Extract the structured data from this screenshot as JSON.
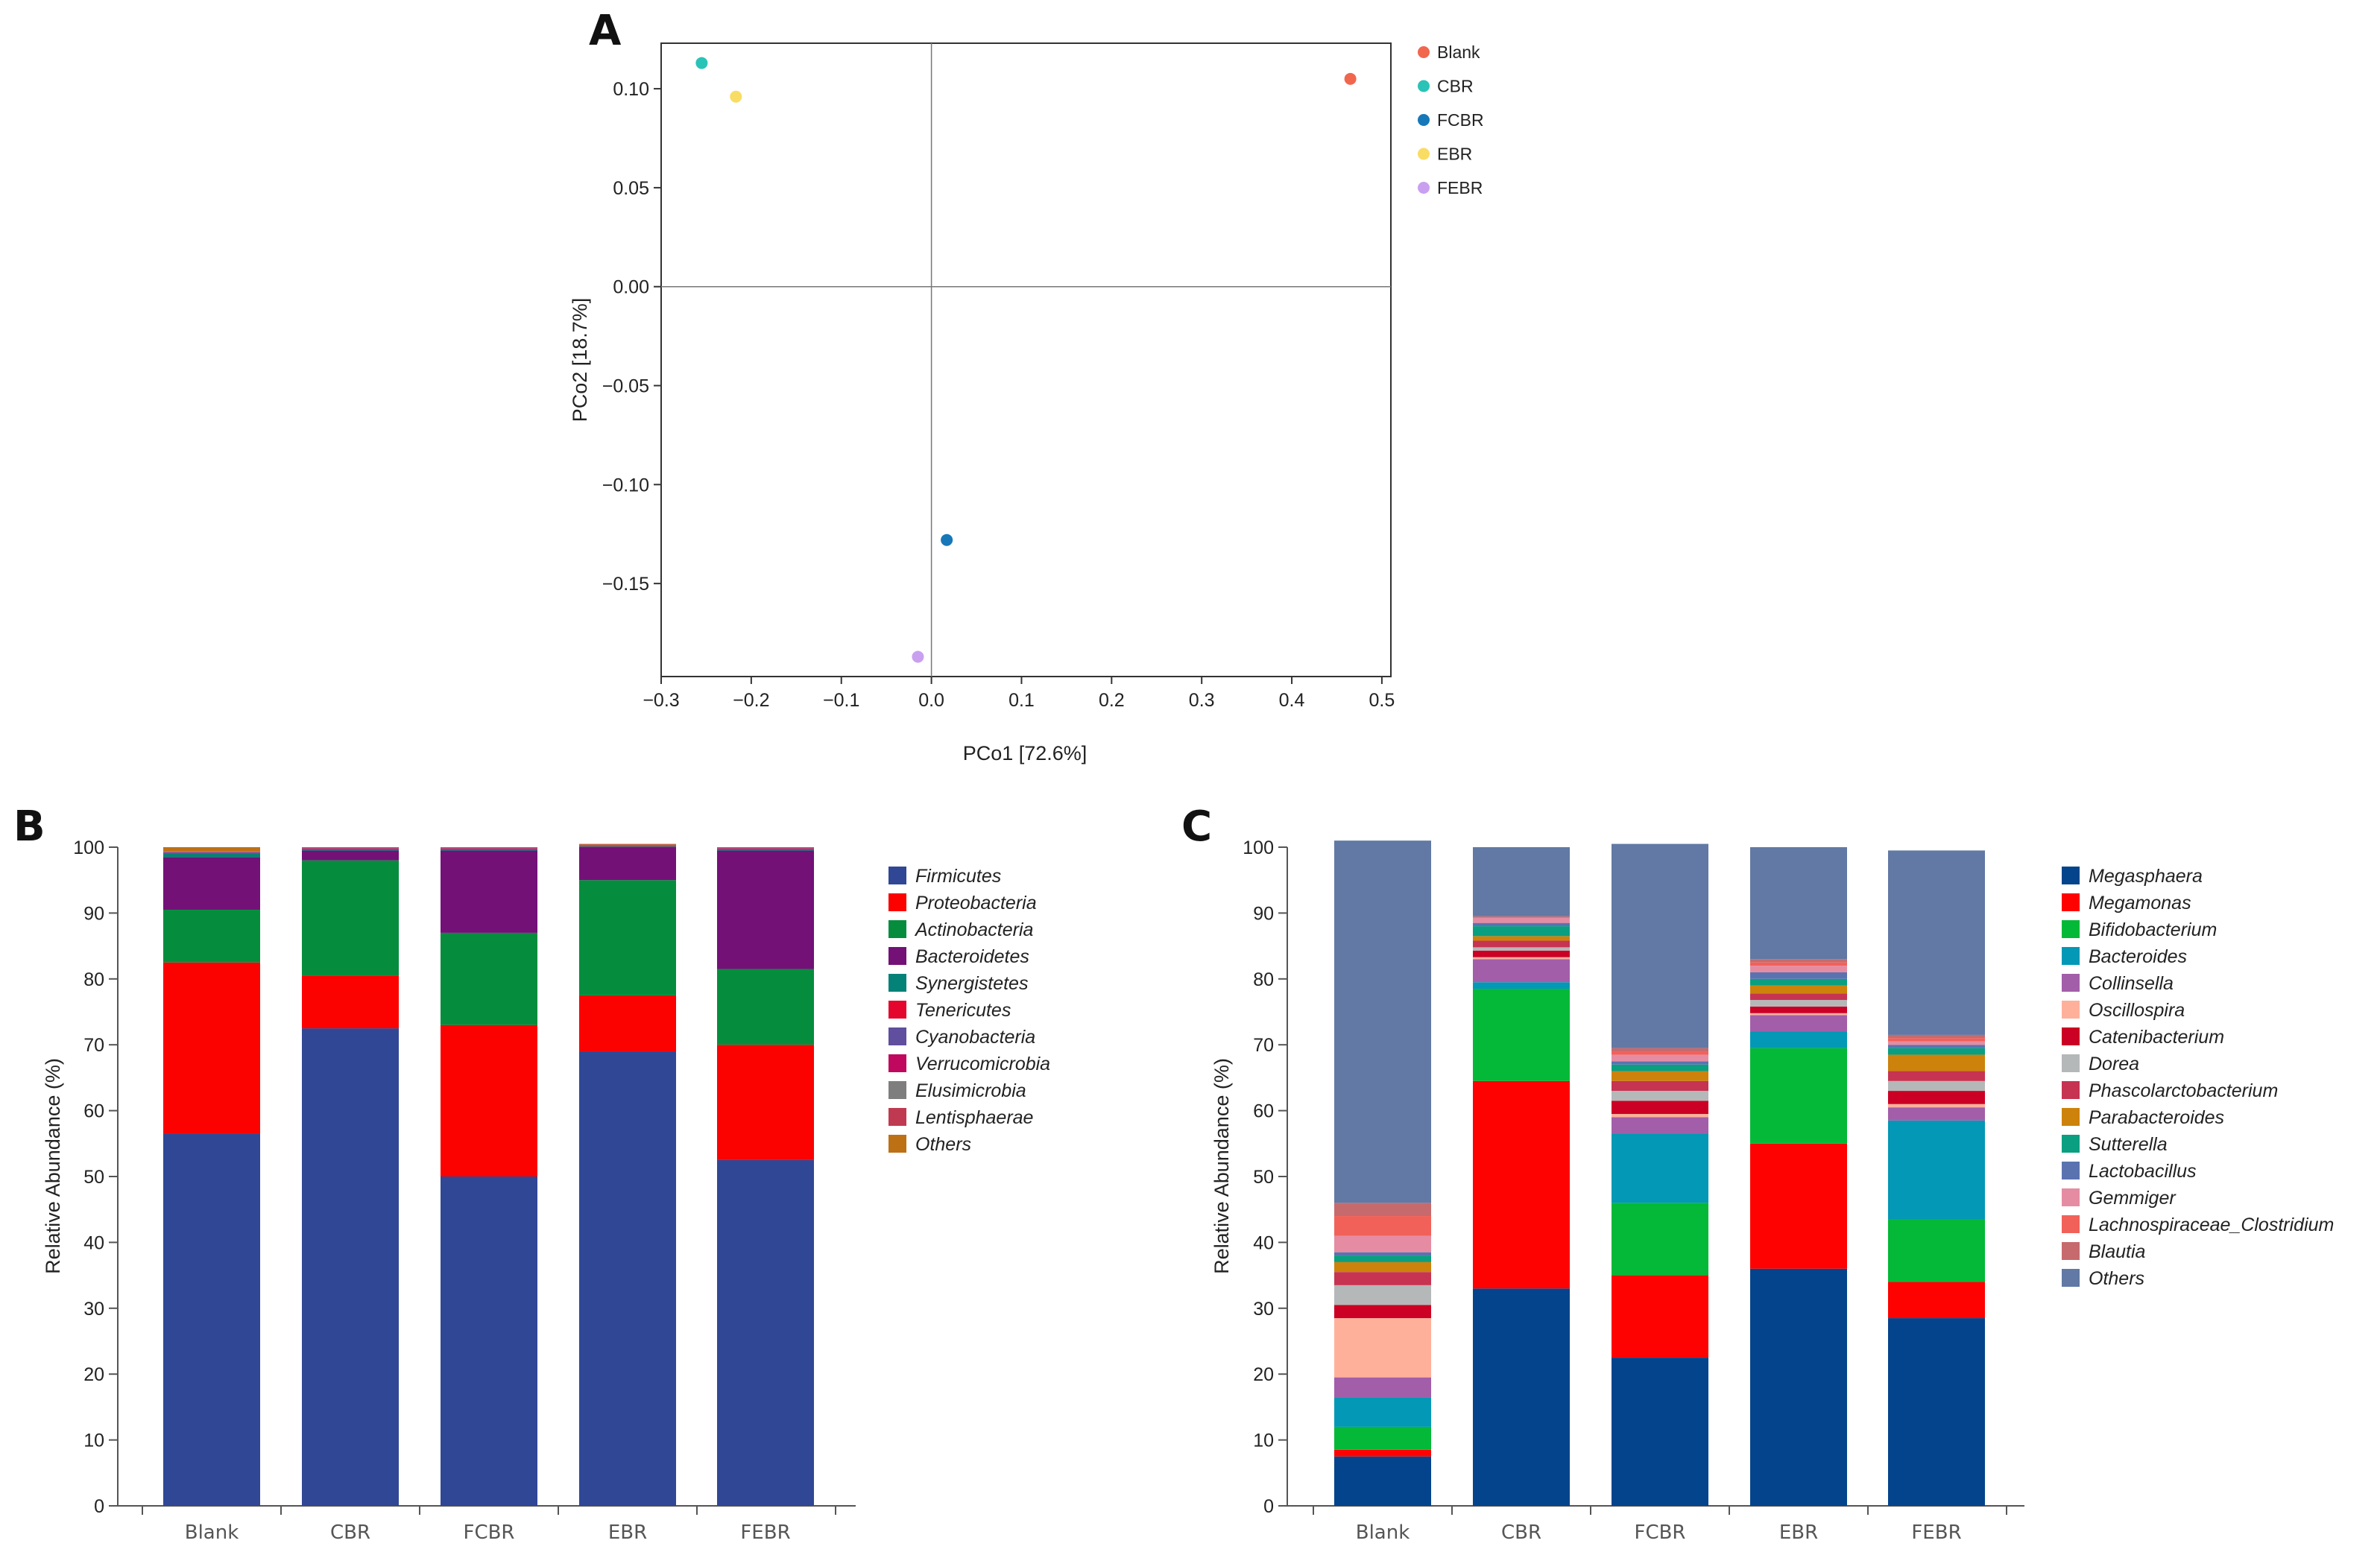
{
  "chart_data": [
    {
      "panel": "A",
      "type": "scatter",
      "title": "",
      "xlabel": "PCo1 [72.6%]",
      "ylabel": "PCo2 [18.7%]",
      "xlim": [
        -0.3,
        0.51
      ],
      "ylim": [
        -0.197,
        0.123
      ],
      "xticks": [
        -0.3,
        -0.2,
        -0.1,
        0.0,
        0.1,
        0.2,
        0.3,
        0.4,
        0.5
      ],
      "xtick_labels": [
        "−0.3",
        "−0.2",
        "−0.1",
        "0.0",
        "0.1",
        "0.2",
        "0.3",
        "0.4",
        "0.5"
      ],
      "yticks": [
        0.1,
        0.05,
        0.0,
        -0.05,
        -0.1,
        -0.15
      ],
      "ytick_labels": [
        "0.10",
        "0.05",
        "0.00",
        "−0.05",
        "−0.10",
        "−0.15"
      ],
      "legend_position": "right",
      "points": [
        {
          "name": "Blank",
          "x": 0.465,
          "y": 0.105,
          "color": "#f0674e"
        },
        {
          "name": "CBR",
          "x": -0.255,
          "y": 0.113,
          "color": "#29c3b7"
        },
        {
          "name": "FCBR",
          "x": 0.017,
          "y": -0.128,
          "color": "#1678b8"
        },
        {
          "name": "EBR",
          "x": -0.217,
          "y": 0.096,
          "color": "#f9dc63"
        },
        {
          "name": "FEBR",
          "x": -0.015,
          "y": -0.187,
          "color": "#c9a0f0"
        }
      ]
    },
    {
      "panel": "B",
      "type": "bar",
      "stacked": true,
      "title": "",
      "xlabel": "",
      "ylabel": "Relative Abundance (%)",
      "ylim": [
        0,
        100
      ],
      "yticks": [
        0,
        10,
        20,
        30,
        40,
        50,
        60,
        70,
        80,
        90,
        100
      ],
      "categories": [
        "Blank",
        "CBR",
        "FCBR",
        "EBR",
        "FEBR"
      ],
      "legend_position": "right",
      "series": [
        {
          "name": "Firmicutes",
          "color": "#304795",
          "values": [
            56.5,
            72.5,
            50.0,
            69.0,
            52.5
          ]
        },
        {
          "name": "Proteobacteria",
          "color": "#fb0100",
          "values": [
            26.0,
            8.0,
            23.0,
            8.5,
            17.5
          ]
        },
        {
          "name": "Actinobacteria",
          "color": "#058d3d",
          "values": [
            8.0,
            17.5,
            14.0,
            17.5,
            11.5
          ]
        },
        {
          "name": "Bacteroidetes",
          "color": "#731177",
          "values": [
            8.0,
            1.5,
            12.5,
            5.0,
            18.0
          ]
        },
        {
          "name": "Synergistetes",
          "color": "#058277",
          "values": [
            0.5,
            0.2,
            0.2,
            0.1,
            0.2
          ]
        },
        {
          "name": "Tenericutes",
          "color": "#e4062c",
          "values": [
            0.1,
            0.1,
            0.1,
            0.1,
            0.1
          ]
        },
        {
          "name": "Cyanobacteria",
          "color": "#604e9e",
          "values": [
            0.1,
            0.05,
            0.05,
            0.05,
            0.05
          ]
        },
        {
          "name": "Verrucomicrobia",
          "color": "#c0085e",
          "values": [
            0.05,
            0.05,
            0.05,
            0.05,
            0.05
          ]
        },
        {
          "name": "Elusimicrobia",
          "color": "#7e7e7e",
          "values": [
            0.05,
            0.05,
            0.05,
            0.05,
            0.05
          ]
        },
        {
          "name": "Lentisphaerae",
          "color": "#bf3a50",
          "values": [
            0.05,
            0.05,
            0.05,
            0.05,
            0.05
          ]
        },
        {
          "name": "Others",
          "color": "#be7015",
          "values": [
            0.65,
            0.0,
            0.0,
            0.1,
            0.0
          ]
        }
      ]
    },
    {
      "panel": "C",
      "type": "bar",
      "stacked": true,
      "title": "",
      "xlabel": "",
      "ylabel": "Relative Abundance (%)",
      "ylim": [
        0,
        100
      ],
      "yticks": [
        0,
        10,
        20,
        30,
        40,
        50,
        60,
        70,
        80,
        90,
        100
      ],
      "categories": [
        "Blank",
        "CBR",
        "FCBR",
        "EBR",
        "FEBR"
      ],
      "legend_position": "right",
      "series": [
        {
          "name": "Megasphaera",
          "color": "#04448c",
          "values": [
            7.5,
            33.0,
            22.5,
            36.0,
            28.5
          ]
        },
        {
          "name": "Megamonas",
          "color": "#fe0202",
          "values": [
            1.0,
            31.5,
            12.5,
            19.0,
            5.5
          ]
        },
        {
          "name": "Bifidobacterium",
          "color": "#03b937",
          "values": [
            3.5,
            14.0,
            11.0,
            14.5,
            9.5
          ]
        },
        {
          "name": "Bacteroides",
          "color": "#0398b5",
          "values": [
            4.5,
            1.0,
            10.5,
            2.5,
            15.0
          ]
        },
        {
          "name": "Collinsella",
          "color": "#a25ea9",
          "values": [
            3.0,
            3.5,
            2.5,
            2.5,
            2.0
          ]
        },
        {
          "name": "Oscillospira",
          "color": "#ffb09b",
          "values": [
            9.0,
            0.3,
            0.5,
            0.3,
            0.5
          ]
        },
        {
          "name": "Catenibacterium",
          "color": "#cb0024",
          "values": [
            2.0,
            1.0,
            2.0,
            1.0,
            2.0
          ]
        },
        {
          "name": "Dorea",
          "color": "#b5b8b8",
          "values": [
            3.0,
            0.5,
            1.5,
            1.0,
            1.5
          ]
        },
        {
          "name": "Phascolarctobacterium",
          "color": "#c63451",
          "values": [
            2.0,
            1.0,
            1.5,
            1.0,
            1.5
          ]
        },
        {
          "name": "Parabacteroides",
          "color": "#cd820c",
          "values": [
            1.5,
            0.7,
            1.5,
            1.2,
            2.5
          ]
        },
        {
          "name": "Sutterella",
          "color": "#0a9f80",
          "values": [
            1.0,
            1.5,
            1.0,
            1.0,
            1.0
          ]
        },
        {
          "name": "Lactobacillus",
          "color": "#5a73b0",
          "values": [
            0.5,
            0.5,
            0.5,
            1.0,
            0.5
          ]
        },
        {
          "name": "Gemmiger",
          "color": "#e58ca3",
          "values": [
            2.5,
            0.8,
            1.0,
            1.0,
            0.5
          ]
        },
        {
          "name": "Lachnospiraceae_Clostridium",
          "color": "#f16159",
          "values": [
            3.0,
            0.0,
            0.5,
            0.5,
            0.5
          ]
        },
        {
          "name": "Blautia",
          "color": "#c76a6d",
          "values": [
            2.0,
            0.2,
            0.5,
            0.5,
            0.5
          ]
        },
        {
          "name": "Others",
          "color": "#6179a4",
          "values": [
            55.0,
            10.5,
            31.0,
            17.0,
            28.0
          ]
        }
      ]
    }
  ],
  "panel_labels": {
    "a": "A",
    "b": "B",
    "c": "C"
  },
  "axis_titles": {
    "a_x": "PCo1 [72.6%]",
    "a_y": "PCo2 [18.7%]",
    "b_y": "Relative Abundance (%)",
    "c_y": "Relative Abundance (%)"
  }
}
